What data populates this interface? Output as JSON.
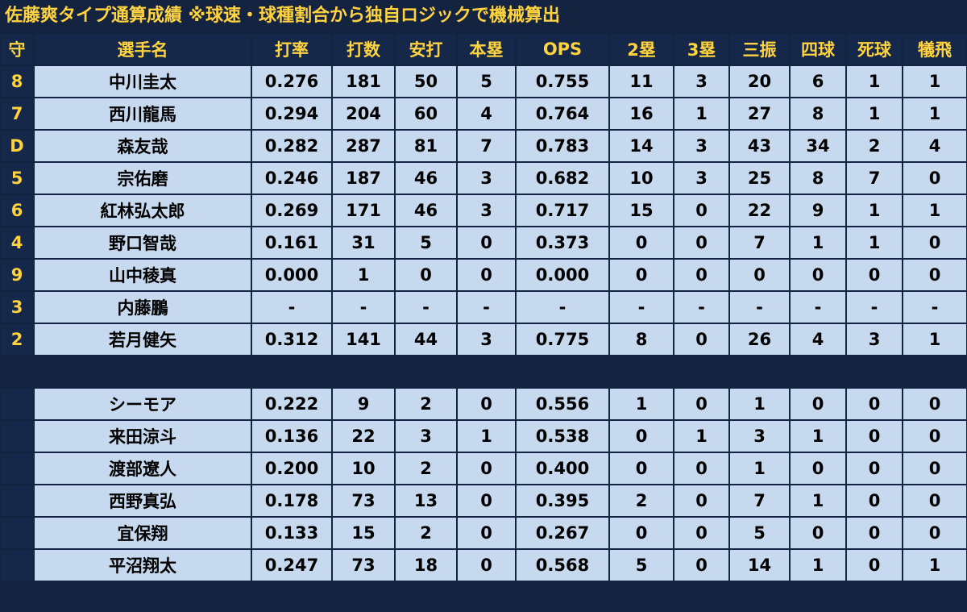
{
  "title": "佐藤爽タイプ通算成績 ※球速・球種割合から独自ロジックで機械算出",
  "table": {
    "header": [
      "守",
      "選手名",
      "打率",
      "打数",
      "安打",
      "本塁",
      "OPS",
      "2塁",
      "3塁",
      "三振",
      "四球",
      "死球",
      "犠飛"
    ],
    "rows": [
      {
        "pos": "8",
        "name": "中川圭太",
        "stats": [
          "0.276",
          "181",
          "50",
          "5",
          "0.755",
          "11",
          "3",
          "20",
          "6",
          "1",
          "1"
        ]
      },
      {
        "pos": "7",
        "name": "西川龍馬",
        "stats": [
          "0.294",
          "204",
          "60",
          "4",
          "0.764",
          "16",
          "1",
          "27",
          "8",
          "1",
          "1"
        ]
      },
      {
        "pos": "D",
        "name": "森友哉",
        "stats": [
          "0.282",
          "287",
          "81",
          "7",
          "0.783",
          "14",
          "3",
          "43",
          "34",
          "2",
          "4"
        ]
      },
      {
        "pos": "5",
        "name": "宗佑磨",
        "stats": [
          "0.246",
          "187",
          "46",
          "3",
          "0.682",
          "10",
          "3",
          "25",
          "8",
          "7",
          "0"
        ]
      },
      {
        "pos": "6",
        "name": "紅林弘太郎",
        "stats": [
          "0.269",
          "171",
          "46",
          "3",
          "0.717",
          "15",
          "0",
          "22",
          "9",
          "1",
          "1"
        ]
      },
      {
        "pos": "4",
        "name": "野口智哉",
        "stats": [
          "0.161",
          "31",
          "5",
          "0",
          "0.373",
          "0",
          "0",
          "7",
          "1",
          "1",
          "0"
        ]
      },
      {
        "pos": "9",
        "name": "山中稜真",
        "stats": [
          "0.000",
          "1",
          "0",
          "0",
          "0.000",
          "0",
          "0",
          "0",
          "0",
          "0",
          "0"
        ]
      },
      {
        "pos": "3",
        "name": "内藤鵬",
        "stats": [
          "-",
          "-",
          "-",
          "-",
          "-",
          "-",
          "-",
          "-",
          "-",
          "-",
          "-"
        ]
      },
      {
        "pos": "2",
        "name": "若月健矢",
        "stats": [
          "0.312",
          "141",
          "44",
          "3",
          "0.775",
          "8",
          "0",
          "26",
          "4",
          "3",
          "1"
        ]
      },
      {
        "name": "シーモア",
        "stats": [
          "0.222",
          "9",
          "2",
          "0",
          "0.556",
          "1",
          "0",
          "1",
          "0",
          "0",
          "0"
        ]
      },
      {
        "name": "来田涼斗",
        "stats": [
          "0.136",
          "22",
          "3",
          "1",
          "0.538",
          "0",
          "1",
          "3",
          "1",
          "0",
          "0"
        ]
      },
      {
        "name": "渡部遼人",
        "stats": [
          "0.200",
          "10",
          "2",
          "0",
          "0.400",
          "0",
          "0",
          "1",
          "0",
          "0",
          "0"
        ]
      },
      {
        "name": "西野真弘",
        "stats": [
          "0.178",
          "73",
          "13",
          "0",
          "0.395",
          "2",
          "0",
          "7",
          "1",
          "0",
          "0"
        ]
      },
      {
        "name": "宜保翔",
        "stats": [
          "0.133",
          "15",
          "2",
          "0",
          "0.267",
          "0",
          "0",
          "5",
          "0",
          "0",
          "0"
        ]
      },
      {
        "name": "平沼翔太",
        "stats": [
          "0.247",
          "73",
          "18",
          "0",
          "0.568",
          "5",
          "0",
          "14",
          "1",
          "0",
          "1"
        ]
      }
    ]
  }
}
